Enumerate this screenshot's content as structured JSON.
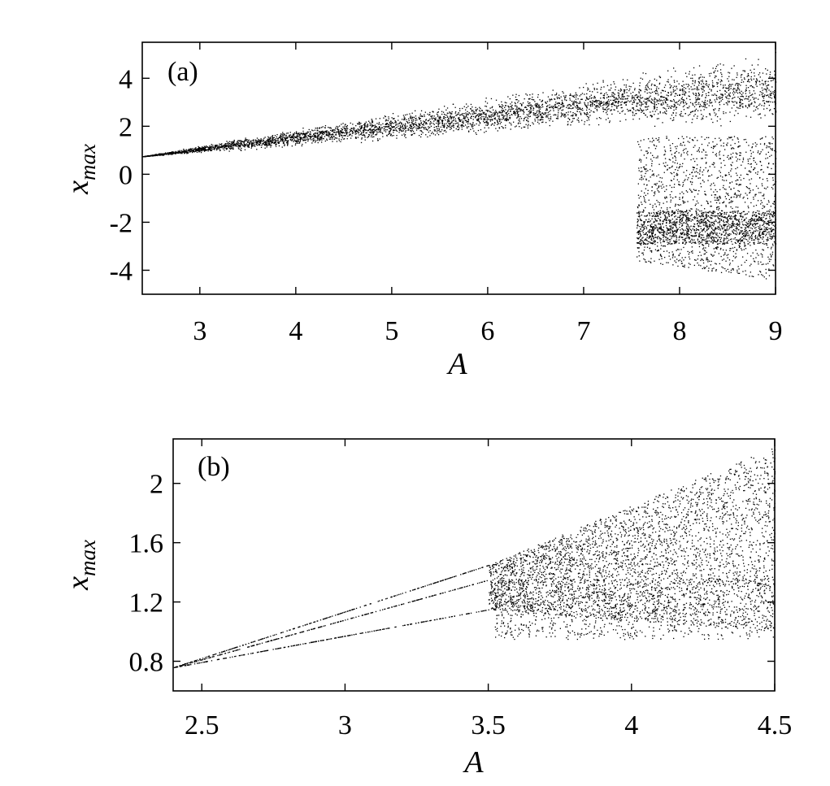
{
  "chart_data": [
    {
      "type": "scatter",
      "panel_label": "(a)",
      "xlabel": "A",
      "ylabel": "x",
      "ylabel_sub": "max",
      "xlim": [
        2.4,
        9
      ],
      "ylim": [
        -5,
        5.5
      ],
      "xticks": [
        3,
        4,
        5,
        6,
        7,
        8,
        9
      ],
      "yticks": [
        -4,
        -2,
        0,
        2,
        4
      ],
      "xtick_labels": [
        "3",
        "4",
        "5",
        "6",
        "7",
        "8",
        "9"
      ],
      "ytick_labels": [
        "-4",
        "-2",
        "0",
        "2",
        "4"
      ],
      "marker_color": "#000000",
      "grid": false,
      "description_points": [
        {
          "x": 2.4,
          "y": 0.75
        },
        {
          "x": 3.5,
          "y": 1.0
        },
        {
          "x": 3.5,
          "y": 1.6
        },
        {
          "x": 5.0,
          "y": 1.3
        },
        {
          "x": 5.0,
          "y": 2.6
        },
        {
          "x": 6.0,
          "y": 1.4
        },
        {
          "x": 6.0,
          "y": 3.2
        },
        {
          "x": 7.0,
          "y": 1.9
        },
        {
          "x": 7.0,
          "y": 3.9
        },
        {
          "x": 7.5,
          "y": 2.0
        },
        {
          "x": 7.5,
          "y": 4.3
        },
        {
          "x": 7.6,
          "y": -3.6
        },
        {
          "x": 7.6,
          "y": 0.6
        },
        {
          "x": 8.0,
          "y": -3.8
        },
        {
          "x": 8.0,
          "y": 4.8
        },
        {
          "x": 9.0,
          "y": -4.4
        },
        {
          "x": 9.0,
          "y": 5.3
        }
      ]
    },
    {
      "type": "scatter",
      "panel_label": "(b)",
      "xlabel": "A",
      "ylabel": "x",
      "ylabel_sub": "max",
      "xlim": [
        2.4,
        4.5
      ],
      "ylim": [
        0.6,
        2.3
      ],
      "xticks": [
        2.5,
        3,
        3.5,
        4,
        4.5
      ],
      "yticks": [
        0.8,
        1.2,
        1.6,
        2.0
      ],
      "xtick_labels": [
        "2.5",
        "3",
        "3.5",
        "4",
        "4.5"
      ],
      "ytick_labels": [
        "0.8",
        "1.2",
        "1.6",
        "2"
      ],
      "marker_color": "#000000",
      "grid": false,
      "description_points": [
        {
          "x": 2.4,
          "y": 0.76
        },
        {
          "x": 3.5,
          "y": 1.15
        },
        {
          "x": 3.5,
          "y": 1.35
        },
        {
          "x": 3.5,
          "y": 1.45
        },
        {
          "x": 3.52,
          "y": 0.95
        },
        {
          "x": 3.8,
          "y": 1.05
        },
        {
          "x": 3.8,
          "y": 1.75
        },
        {
          "x": 4.0,
          "y": 0.97
        },
        {
          "x": 4.0,
          "y": 1.92
        },
        {
          "x": 4.5,
          "y": 1.0
        },
        {
          "x": 4.5,
          "y": 2.25
        }
      ]
    }
  ]
}
